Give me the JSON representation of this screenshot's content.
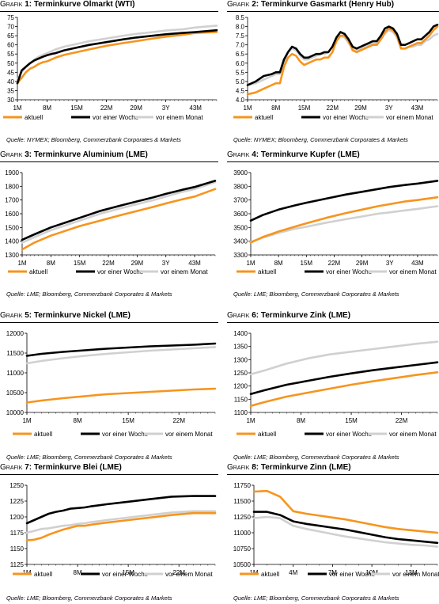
{
  "colors": {
    "aktuell": "#f7941d",
    "woche": "#000000",
    "monat": "#d0d0d0"
  },
  "panels": [
    {
      "grafik_label": "Grafik",
      "number": "1:",
      "title": "Terminkurve Ölmarkt (WTI)",
      "source": "Quelle: NYMEX; Bloomberg, Commerzbank Corporates & Markets",
      "chart_data": {
        "type": "line",
        "categories": [
          "1M",
          "8M",
          "15M",
          "22M",
          "29M",
          "3Y",
          "43M"
        ],
        "y_ticks": [
          "30",
          "35",
          "40",
          "45",
          "50",
          "55",
          "60",
          "65",
          "70",
          "75"
        ],
        "ylim": [
          30,
          75
        ],
        "x": [
          1,
          2,
          3,
          4,
          5,
          6,
          7,
          8,
          9,
          10,
          12,
          15,
          18,
          22,
          26,
          29,
          33,
          36,
          40,
          43,
          48
        ],
        "series": [
          {
            "name": "aktuell",
            "key": "aktuell",
            "values": [
              39,
              42,
              45,
              47,
              48,
              49.5,
              50.5,
              51,
              52,
              53,
              54.5,
              56,
              57.5,
              59.5,
              61,
              62,
              63.5,
              64.5,
              65.5,
              66.5,
              67
            ]
          },
          {
            "name": "vor einer Woche",
            "key": "woche",
            "values": [
              39,
              46,
              48,
              50,
              51.5,
              52.5,
              53.5,
              54.3,
              55,
              55.5,
              57,
              58.5,
              60,
              61.5,
              63,
              64,
              65,
              65.8,
              66.5,
              67,
              68
            ]
          },
          {
            "name": "vor einem Monat",
            "key": "monat",
            "values": [
              41,
              45,
              48,
              50,
              52,
              53.5,
              54.5,
              55.5,
              56.5,
              57.5,
              59,
              60.5,
              62,
              63.5,
              65,
              66,
              67,
              67.8,
              68.5,
              69.5,
              70.5
            ]
          }
        ],
        "legend": [
          "aktuell",
          "vor einer Woche",
          "vor einem Monat"
        ]
      }
    },
    {
      "grafik_label": "Grafik",
      "number": "2:",
      "title": "Terminkurve Gasmarkt (Henry Hub)",
      "source": "Quelle: NYMEX; Bloomberg, Commerzbank Corporates & Markets",
      "chart_data": {
        "type": "line",
        "categories": [
          "1M",
          "8M",
          "15M",
          "22M",
          "29M",
          "3Y",
          "43M"
        ],
        "y_ticks": [
          "4.0",
          "4.5",
          "5.0",
          "5.5",
          "6.0",
          "6.5",
          "7.0",
          "7.5",
          "8.0",
          "8.5"
        ],
        "ylim": [
          4.0,
          8.5
        ],
        "x": [
          1,
          3,
          5,
          7,
          8,
          9,
          10,
          11,
          12,
          13,
          14,
          15,
          16,
          17,
          18,
          19,
          20,
          21,
          22,
          23,
          24,
          25,
          26,
          27,
          28,
          29,
          30,
          31,
          32,
          33,
          34,
          35,
          36,
          37,
          38,
          39,
          40,
          41,
          42,
          43,
          44,
          45,
          46,
          47,
          48
        ],
        "series": [
          {
            "name": "aktuell",
            "key": "aktuell",
            "values": [
              4.3,
              4.4,
              4.6,
              4.8,
              4.9,
              4.9,
              5.8,
              6.3,
              6.5,
              6.4,
              6.1,
              5.9,
              6.0,
              6.1,
              6.2,
              6.2,
              6.3,
              6.3,
              6.6,
              7.2,
              7.5,
              7.5,
              7.2,
              6.7,
              6.6,
              6.7,
              6.8,
              6.9,
              7.0,
              7.0,
              7.3,
              7.7,
              7.9,
              7.8,
              7.5,
              6.8,
              6.8,
              6.9,
              7.0,
              7.1,
              7.1,
              7.3,
              7.5,
              7.8,
              8.0
            ]
          },
          {
            "name": "vor einer Woche",
            "key": "woche",
            "values": [
              4.8,
              5.0,
              5.3,
              5.4,
              5.5,
              5.5,
              6.2,
              6.6,
              6.9,
              6.8,
              6.5,
              6.3,
              6.3,
              6.4,
              6.5,
              6.5,
              6.6,
              6.6,
              6.9,
              7.4,
              7.7,
              7.6,
              7.3,
              6.9,
              6.8,
              6.9,
              7.0,
              7.1,
              7.2,
              7.2,
              7.5,
              7.9,
              8.0,
              7.9,
              7.6,
              7.0,
              7.0,
              7.1,
              7.2,
              7.3,
              7.3,
              7.5,
              7.7,
              8.0,
              8.1
            ]
          },
          {
            "name": "vor einem Monat",
            "key": "monat",
            "values": [
              4.8,
              4.9,
              5.1,
              5.3,
              5.4,
              5.4,
              6.0,
              6.6,
              6.8,
              6.7,
              6.4,
              6.2,
              6.2,
              6.3,
              6.4,
              6.5,
              6.5,
              6.6,
              6.9,
              7.3,
              7.5,
              7.4,
              7.1,
              6.8,
              6.7,
              6.8,
              6.9,
              7.0,
              7.1,
              7.1,
              7.3,
              7.6,
              7.8,
              7.7,
              7.4,
              6.8,
              6.8,
              6.9,
              6.9,
              7.0,
              7.0,
              7.2,
              7.3,
              7.5,
              7.6
            ]
          }
        ],
        "legend": [
          "aktuell",
          "vor einer Woche",
          "vor einem Monat"
        ]
      }
    },
    {
      "grafik_label": "Grafik",
      "number": "3:",
      "title": "Terminkurve Aluminium (LME)",
      "source": "Quelle: LME; Bloomberg, Commerzbank Corporates & Markets",
      "chart_data": {
        "type": "line",
        "categories": [
          "1M",
          "8M",
          "15M",
          "22M",
          "29M",
          "3Y",
          "43M"
        ],
        "y_ticks": [
          "1300",
          "1400",
          "1500",
          "1600",
          "1700",
          "1800",
          "1900"
        ],
        "ylim": [
          1300,
          1900
        ],
        "x": [
          1,
          4,
          8,
          12,
          15,
          20,
          25,
          29,
          33,
          36,
          40,
          43,
          48
        ],
        "series": [
          {
            "name": "aktuell",
            "key": "aktuell",
            "values": [
              1340,
              1390,
              1440,
              1480,
              1510,
              1550,
              1590,
              1620,
              1650,
              1675,
              1705,
              1725,
              1780
            ]
          },
          {
            "name": "vor einer Woche",
            "key": "woche",
            "values": [
              1410,
              1450,
              1500,
              1540,
              1570,
              1620,
              1660,
              1690,
              1720,
              1745,
              1775,
              1795,
              1840
            ]
          },
          {
            "name": "vor einem Monat",
            "key": "monat",
            "values": [
              1390,
              1430,
              1480,
              1520,
              1550,
              1600,
              1640,
              1670,
              1700,
              1725,
              1760,
              1780,
              1830
            ]
          }
        ],
        "legend": [
          "aktuell",
          "vor einer Woche",
          "vor einem Monat"
        ]
      }
    },
    {
      "grafik_label": "Grafik",
      "number": "4:",
      "title": "Terminkurve Kupfer (LME)",
      "source": "Quelle: LME; Bloomberg, Commerzbank Corporates & Markets",
      "chart_data": {
        "type": "line",
        "categories": [
          "1M",
          "8M",
          "15M",
          "22M",
          "29M",
          "3Y",
          "43M"
        ],
        "y_ticks": [
          "3300",
          "3400",
          "3500",
          "3600",
          "3700",
          "3800",
          "3900"
        ],
        "ylim": [
          3300,
          3900
        ],
        "x": [
          1,
          4,
          8,
          12,
          15,
          20,
          25,
          29,
          33,
          36,
          40,
          43,
          48
        ],
        "series": [
          {
            "name": "aktuell",
            "key": "aktuell",
            "values": [
              3390,
              3430,
              3470,
              3505,
              3530,
              3570,
              3605,
              3630,
              3655,
              3670,
              3690,
              3700,
              3720
            ]
          },
          {
            "name": "vor einer Woche",
            "key": "woche",
            "values": [
              3550,
              3590,
              3630,
              3660,
              3680,
              3710,
              3740,
              3760,
              3780,
              3795,
              3810,
              3820,
              3840
            ]
          },
          {
            "name": "vor einem Monat",
            "key": "monat",
            "values": [
              3395,
              3425,
              3460,
              3490,
              3505,
              3535,
              3560,
              3580,
              3600,
              3610,
              3625,
              3635,
              3655
            ]
          }
        ],
        "legend": [
          "aktuell",
          "vor einer Woche",
          "vor einem Monat"
        ]
      }
    },
    {
      "grafik_label": "Grafik",
      "number": "5:",
      "title": "Terminkurve Nickel (LME)",
      "source": "Quelle: LME; Bloomberg, Commerzbank Corporates & Markets",
      "chart_data": {
        "type": "line",
        "categories": [
          "1M",
          "8M",
          "15M",
          "22M"
        ],
        "y_ticks": [
          "10000",
          "10500",
          "11000",
          "11500",
          "12000"
        ],
        "ylim": [
          10000,
          12000
        ],
        "x": [
          1,
          3,
          6,
          9,
          12,
          15,
          18,
          21,
          24,
          27
        ],
        "series": [
          {
            "name": "aktuell",
            "key": "aktuell",
            "values": [
              10250,
              10300,
              10360,
              10410,
              10460,
              10490,
              10520,
              10550,
              10580,
              10600
            ]
          },
          {
            "name": "vor einer Woche",
            "key": "woche",
            "values": [
              11430,
              11480,
              11530,
              11570,
              11610,
              11640,
              11670,
              11690,
              11710,
              11740
            ]
          },
          {
            "name": "vor einem Monat",
            "key": "monat",
            "values": [
              11240,
              11300,
              11370,
              11430,
              11480,
              11520,
              11560,
              11590,
              11620,
              11650
            ]
          }
        ],
        "legend": [
          "aktuell",
          "vor einer Woche",
          "vor einem Monat"
        ]
      }
    },
    {
      "grafik_label": "Grafik",
      "number": "6:",
      "title": "Terminkurve Zink (LME)",
      "source": "Quelle: LME; Bloomberg, Commerzbank Corporates & Markets",
      "chart_data": {
        "type": "line",
        "categories": [
          "1M",
          "8M",
          "15M",
          "22M"
        ],
        "y_ticks": [
          "1100",
          "1150",
          "1200",
          "1250",
          "1300",
          "1350",
          "1400"
        ],
        "ylim": [
          1100,
          1400
        ],
        "x": [
          1,
          3,
          6,
          9,
          12,
          15,
          18,
          21,
          24,
          27
        ],
        "series": [
          {
            "name": "aktuell",
            "key": "aktuell",
            "values": [
              1125,
              1140,
              1160,
              1175,
              1190,
              1205,
              1218,
              1230,
              1242,
              1252
            ]
          },
          {
            "name": "vor einer Woche",
            "key": "woche",
            "values": [
              1170,
              1185,
              1205,
              1220,
              1235,
              1248,
              1260,
              1270,
              1280,
              1290
            ]
          },
          {
            "name": "vor einem Monat",
            "key": "monat",
            "values": [
              1245,
              1260,
              1285,
              1305,
              1320,
              1330,
              1340,
              1350,
              1360,
              1368
            ]
          }
        ],
        "legend": [
          "aktuell",
          "vor einer Woche",
          "vor einem Monat"
        ]
      }
    },
    {
      "grafik_label": "Grafik",
      "number": "7:",
      "title": "Terminkurve Blei (LME)",
      "source": "Quelle: LME; Bloomberg, Commerzbank Corporates & Markets",
      "chart_data": {
        "type": "line",
        "categories": [
          "1M",
          "8M",
          "15M",
          "22M"
        ],
        "y_ticks": [
          "1125",
          "1150",
          "1175",
          "1200",
          "1225",
          "1250"
        ],
        "ylim": [
          1125,
          1250
        ],
        "x": [
          1,
          2,
          3,
          4,
          5,
          6,
          7,
          8,
          9,
          10,
          12,
          15,
          18,
          21,
          24,
          25,
          27
        ],
        "series": [
          {
            "name": "aktuell",
            "key": "aktuell",
            "values": [
              1163,
              1164,
              1167,
              1172,
              1176,
              1180,
              1183,
              1186,
              1186,
              1188,
              1191,
              1195,
              1199,
              1203,
              1206,
              1206,
              1206
            ]
          },
          {
            "name": "vor einer Woche",
            "key": "woche",
            "values": [
              1190,
              1195,
              1200,
              1205,
              1208,
              1210,
              1213,
              1214,
              1215,
              1217,
              1220,
              1224,
              1228,
              1232,
              1233,
              1233,
              1233
            ]
          },
          {
            "name": "vor einem Monat",
            "key": "monat",
            "values": [
              1175,
              1178,
              1181,
              1182,
              1184,
              1186,
              1187,
              1189,
              1190,
              1192,
              1195,
              1199,
              1203,
              1207,
              1209,
              1209,
              1209
            ]
          }
        ],
        "legend": [
          "aktuell",
          "vor einer Woche",
          "vor einem Monat"
        ]
      }
    },
    {
      "grafik_label": "Grafik",
      "number": "8:",
      "title": "Terminkurve Zinn (LME)",
      "source": "Quelle: LME; Bloomberg, Commerzbank Corporates & Markets",
      "chart_data": {
        "type": "line",
        "categories": [
          "1M",
          "4M",
          "7M",
          "10M",
          "13M"
        ],
        "y_ticks": [
          "10500",
          "10750",
          "11000",
          "11250",
          "11500",
          "11750"
        ],
        "ylim": [
          10500,
          11750
        ],
        "x": [
          1,
          2,
          3,
          4,
          5,
          6,
          7,
          8,
          9,
          10,
          11,
          12,
          13,
          14,
          15
        ],
        "series": [
          {
            "name": "aktuell",
            "key": "aktuell",
            "values": [
              11650,
              11660,
              11570,
              11340,
              11300,
              11270,
              11240,
              11210,
              11170,
              11130,
              11090,
              11060,
              11040,
              11020,
              11000
            ]
          },
          {
            "name": "vor einer Woche",
            "key": "woche",
            "values": [
              11330,
              11330,
              11280,
              11180,
              11140,
              11110,
              11080,
              11050,
              11010,
              10970,
              10930,
              10900,
              10880,
              10860,
              10840
            ]
          },
          {
            "name": "vor einem Monat",
            "key": "monat",
            "values": [
              11230,
              11250,
              11230,
              11110,
              11060,
              11020,
              10980,
              10940,
              10910,
              10880,
              10850,
              10830,
              10810,
              10800,
              10780
            ]
          }
        ],
        "legend": [
          "aktuell",
          "vor einer Woche",
          "vor einem Monat"
        ]
      }
    }
  ]
}
